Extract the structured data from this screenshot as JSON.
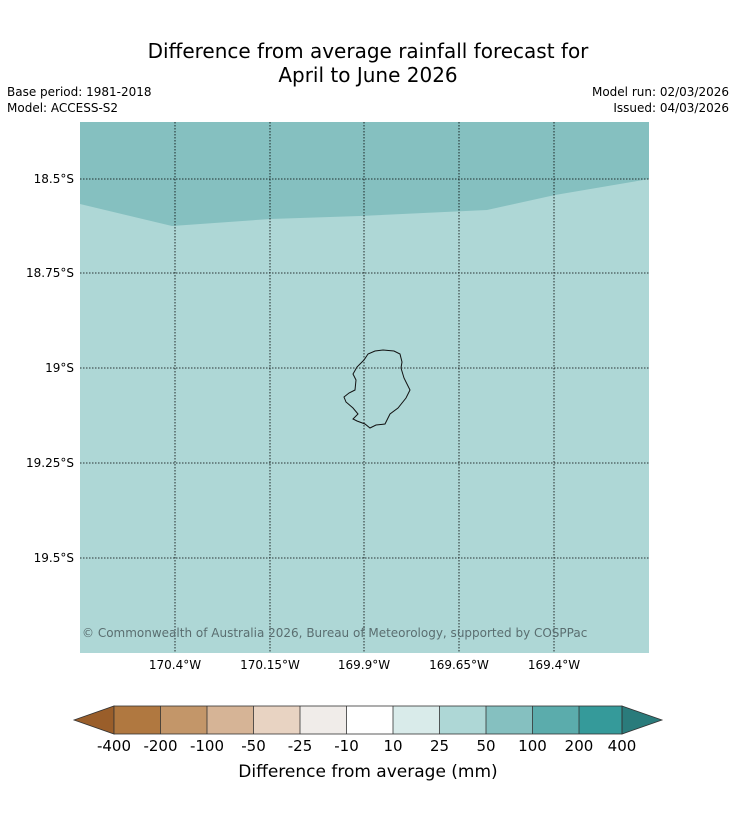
{
  "title_line1": "Difference from average rainfall forecast for",
  "title_line2": "April to June 2026",
  "base_period": "Base period: 1981-2018",
  "model": "Model: ACCESS-S2",
  "model_run": "Model run: 02/03/2026",
  "issued": "Issued: 04/03/2026",
  "lat_labels": [
    "18.5°S",
    "18.75°S",
    "19°S",
    "19.25°S",
    "19.5°S"
  ],
  "lon_labels": [
    "170.4°W",
    "170.15°W",
    "169.9°W",
    "169.65°W",
    "169.4°W"
  ],
  "copyright": "© Commonwealth of Australia 2026, Bureau of Meteorology, supported by COSPPac",
  "colorbar": {
    "label": "Difference from average (mm)",
    "ticks": [
      "-400",
      "-200",
      "-100",
      "-50",
      "-25",
      "-10",
      "10",
      "25",
      "50",
      "100",
      "200",
      "400"
    ],
    "colors": [
      "#9a5e2a",
      "#b07840",
      "#c39669",
      "#d6b496",
      "#e8d3c2",
      "#f0ece9",
      "#ffffff",
      "#d9ebea",
      "#aed7d6",
      "#85c0c0",
      "#5bacac",
      "#359a9a",
      "#2a7b7b"
    ]
  },
  "regions": {
    "wetter_zone_color": "#85c0c0",
    "base_zone_color": "#aed7d6",
    "wetter_zone_category": "50 to 100",
    "base_zone_category": "25 to 50"
  }
}
